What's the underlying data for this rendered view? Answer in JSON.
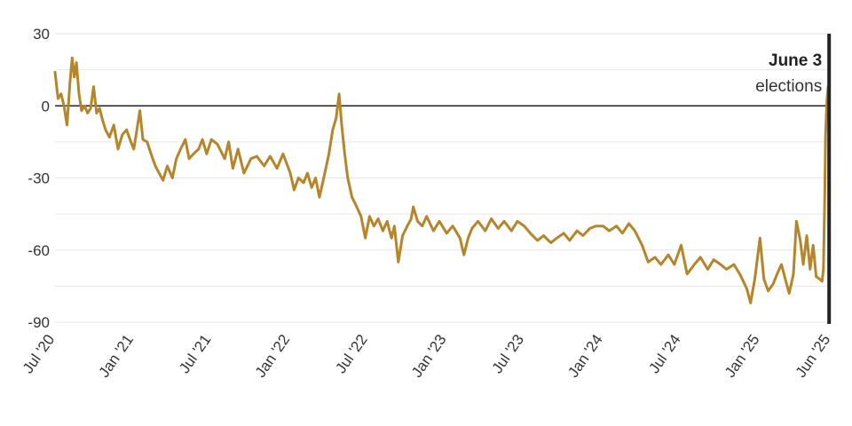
{
  "chart_data": {
    "type": "line",
    "title": "",
    "xlabel": "",
    "ylabel": "",
    "ylim": [
      -90,
      30
    ],
    "yticks": [
      30,
      0,
      -30,
      -60,
      -90
    ],
    "ytick_labels": [
      "30",
      "0",
      "-30",
      "-60",
      "-90"
    ],
    "xtick_labels": [
      "Jul '20",
      "Jan '21",
      "Jul '21",
      "Jan '22",
      "Jul '22",
      "Jan '23",
      "Jul '23",
      "Jan '24",
      "Jul '24",
      "Jan '25",
      "Jun '25"
    ],
    "xtick_dates": [
      "2020-07-01",
      "2021-01-01",
      "2021-07-01",
      "2022-01-01",
      "2022-07-01",
      "2023-01-01",
      "2023-07-01",
      "2024-01-01",
      "2024-07-01",
      "2025-01-01",
      "2025-06-15"
    ],
    "xlim": [
      "2020-07-01",
      "2025-06-15"
    ],
    "grid": true,
    "legend": "none",
    "colors": {
      "line": "#B5852A",
      "zero_line": "#222222",
      "marker_line": "#222222",
      "grid": "#e6e6e6"
    },
    "annotation": {
      "date": "2025-06-03",
      "title": "June 3",
      "subtitle": "elections"
    },
    "series": [
      {
        "points": [
          [
            "2020-07-01",
            14
          ],
          [
            "2020-07-08",
            3
          ],
          [
            "2020-07-15",
            5
          ],
          [
            "2020-07-22",
            0
          ],
          [
            "2020-07-29",
            -8
          ],
          [
            "2020-08-05",
            10
          ],
          [
            "2020-08-10",
            20
          ],
          [
            "2020-08-15",
            12
          ],
          [
            "2020-08-20",
            18
          ],
          [
            "2020-08-26",
            5
          ],
          [
            "2020-09-01",
            -2
          ],
          [
            "2020-09-08",
            0
          ],
          [
            "2020-09-15",
            -3
          ],
          [
            "2020-09-22",
            -1
          ],
          [
            "2020-09-29",
            8
          ],
          [
            "2020-10-06",
            -3
          ],
          [
            "2020-10-13",
            -1
          ],
          [
            "2020-10-20",
            -6
          ],
          [
            "2020-10-27",
            -10
          ],
          [
            "2020-11-05",
            -13
          ],
          [
            "2020-11-15",
            -8
          ],
          [
            "2020-11-25",
            -18
          ],
          [
            "2020-12-05",
            -12
          ],
          [
            "2020-12-15",
            -10
          ],
          [
            "2020-12-25",
            -15
          ],
          [
            "2021-01-01",
            -18
          ],
          [
            "2021-01-08",
            -10
          ],
          [
            "2021-01-15",
            -2
          ],
          [
            "2021-01-22",
            -14
          ],
          [
            "2021-02-01",
            -15
          ],
          [
            "2021-02-10",
            -20
          ],
          [
            "2021-02-20",
            -25
          ],
          [
            "2021-03-01",
            -28
          ],
          [
            "2021-03-10",
            -31
          ],
          [
            "2021-03-20",
            -25
          ],
          [
            "2021-04-01",
            -30
          ],
          [
            "2021-04-10",
            -22
          ],
          [
            "2021-04-20",
            -18
          ],
          [
            "2021-05-01",
            -14
          ],
          [
            "2021-05-10",
            -22
          ],
          [
            "2021-05-20",
            -20
          ],
          [
            "2021-06-01",
            -18
          ],
          [
            "2021-06-10",
            -14
          ],
          [
            "2021-06-20",
            -20
          ],
          [
            "2021-07-01",
            -14
          ],
          [
            "2021-07-15",
            -16
          ],
          [
            "2021-08-01",
            -22
          ],
          [
            "2021-08-10",
            -15
          ],
          [
            "2021-08-20",
            -26
          ],
          [
            "2021-09-01",
            -18
          ],
          [
            "2021-09-15",
            -28
          ],
          [
            "2021-10-01",
            -22
          ],
          [
            "2021-10-15",
            -21
          ],
          [
            "2021-11-01",
            -25
          ],
          [
            "2021-11-15",
            -21
          ],
          [
            "2021-12-01",
            -26
          ],
          [
            "2021-12-15",
            -20
          ],
          [
            "2022-01-01",
            -28
          ],
          [
            "2022-01-10",
            -35
          ],
          [
            "2022-01-20",
            -30
          ],
          [
            "2022-02-01",
            -32
          ],
          [
            "2022-02-10",
            -28
          ],
          [
            "2022-02-20",
            -34
          ],
          [
            "2022-03-01",
            -30
          ],
          [
            "2022-03-10",
            -38
          ],
          [
            "2022-03-20",
            -30
          ],
          [
            "2022-04-01",
            -20
          ],
          [
            "2022-04-10",
            -10
          ],
          [
            "2022-04-18",
            -5
          ],
          [
            "2022-04-25",
            5
          ],
          [
            "2022-05-01",
            -8
          ],
          [
            "2022-05-08",
            -20
          ],
          [
            "2022-05-15",
            -30
          ],
          [
            "2022-05-25",
            -38
          ],
          [
            "2022-06-05",
            -42
          ],
          [
            "2022-06-15",
            -46
          ],
          [
            "2022-06-25",
            -55
          ],
          [
            "2022-07-05",
            -46
          ],
          [
            "2022-07-15",
            -50
          ],
          [
            "2022-07-25",
            -47
          ],
          [
            "2022-08-05",
            -52
          ],
          [
            "2022-08-15",
            -48
          ],
          [
            "2022-08-25",
            -55
          ],
          [
            "2022-09-01",
            -50
          ],
          [
            "2022-09-10",
            -65
          ],
          [
            "2022-09-20",
            -54
          ],
          [
            "2022-10-01",
            -50
          ],
          [
            "2022-10-10",
            -47
          ],
          [
            "2022-10-15",
            -42
          ],
          [
            "2022-10-25",
            -48
          ],
          [
            "2022-11-05",
            -50
          ],
          [
            "2022-11-15",
            -46
          ],
          [
            "2022-12-01",
            -52
          ],
          [
            "2022-12-15",
            -48
          ],
          [
            "2023-01-01",
            -53
          ],
          [
            "2023-01-15",
            -50
          ],
          [
            "2023-02-01",
            -55
          ],
          [
            "2023-02-10",
            -62
          ],
          [
            "2023-02-20",
            -55
          ],
          [
            "2023-03-01",
            -51
          ],
          [
            "2023-03-15",
            -48
          ],
          [
            "2023-04-01",
            -52
          ],
          [
            "2023-04-15",
            -47
          ],
          [
            "2023-05-01",
            -51
          ],
          [
            "2023-05-15",
            -48
          ],
          [
            "2023-06-01",
            -52
          ],
          [
            "2023-06-15",
            -48
          ],
          [
            "2023-07-01",
            -50
          ],
          [
            "2023-07-15",
            -53
          ],
          [
            "2023-08-01",
            -56
          ],
          [
            "2023-08-15",
            -54
          ],
          [
            "2023-09-01",
            -57
          ],
          [
            "2023-09-15",
            -55
          ],
          [
            "2023-10-01",
            -53
          ],
          [
            "2023-10-15",
            -56
          ],
          [
            "2023-11-01",
            -52
          ],
          [
            "2023-11-15",
            -54
          ],
          [
            "2023-12-01",
            -51
          ],
          [
            "2023-12-15",
            -50
          ],
          [
            "2024-01-01",
            -50
          ],
          [
            "2024-01-15",
            -52
          ],
          [
            "2024-02-01",
            -50
          ],
          [
            "2024-02-15",
            -53
          ],
          [
            "2024-03-01",
            -49
          ],
          [
            "2024-03-15",
            -52
          ],
          [
            "2024-04-01",
            -58
          ],
          [
            "2024-04-15",
            -65
          ],
          [
            "2024-05-01",
            -63
          ],
          [
            "2024-05-15",
            -66
          ],
          [
            "2024-06-01",
            -62
          ],
          [
            "2024-06-15",
            -66
          ],
          [
            "2024-07-01",
            -58
          ],
          [
            "2024-07-15",
            -70
          ],
          [
            "2024-08-01",
            -66
          ],
          [
            "2024-08-15",
            -63
          ],
          [
            "2024-09-01",
            -68
          ],
          [
            "2024-09-15",
            -64
          ],
          [
            "2024-10-01",
            -66
          ],
          [
            "2024-10-15",
            -68
          ],
          [
            "2024-11-01",
            -66
          ],
          [
            "2024-11-15",
            -70
          ],
          [
            "2024-12-01",
            -76
          ],
          [
            "2024-12-10",
            -82
          ],
          [
            "2024-12-20",
            -72
          ],
          [
            "2025-01-01",
            -55
          ],
          [
            "2025-01-10",
            -72
          ],
          [
            "2025-01-20",
            -77
          ],
          [
            "2025-02-01",
            -74
          ],
          [
            "2025-02-10",
            -70
          ],
          [
            "2025-02-20",
            -66
          ],
          [
            "2025-03-01",
            -72
          ],
          [
            "2025-03-10",
            -78
          ],
          [
            "2025-03-20",
            -70
          ],
          [
            "2025-03-27",
            -48
          ],
          [
            "2025-04-05",
            -56
          ],
          [
            "2025-04-12",
            -66
          ],
          [
            "2025-04-20",
            -54
          ],
          [
            "2025-04-28",
            -68
          ],
          [
            "2025-05-05",
            -58
          ],
          [
            "2025-05-12",
            -71
          ],
          [
            "2025-05-20",
            -72
          ],
          [
            "2025-05-26",
            -73
          ],
          [
            "2025-05-29",
            -68
          ],
          [
            "2025-06-01",
            -40
          ],
          [
            "2025-06-03",
            -12
          ],
          [
            "2025-06-06",
            2
          ],
          [
            "2025-06-09",
            8
          ],
          [
            "2025-06-12",
            9
          ]
        ]
      }
    ]
  }
}
